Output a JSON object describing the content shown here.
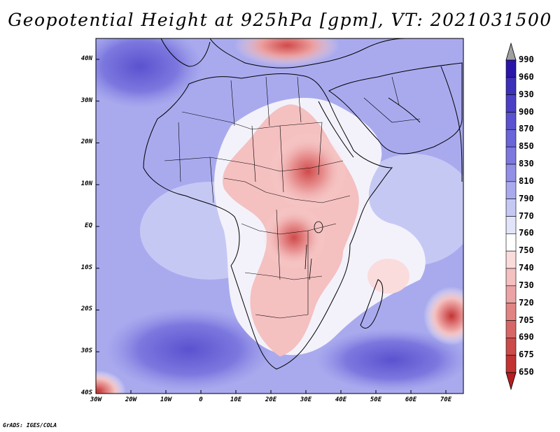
{
  "title": "Geopotential Height at 925hPa [gpm], VT: 2021031500",
  "credit": "GrADS: IGES/COLA",
  "map": {
    "lat_labels": [
      "40N",
      "30N",
      "20N",
      "10N",
      "EQ",
      "10S",
      "20S",
      "30S",
      "40S"
    ],
    "lon_labels": [
      "30W",
      "20W",
      "10W",
      "0",
      "10E",
      "20E",
      "30E",
      "40E",
      "50E",
      "60E",
      "70E"
    ],
    "extent": {
      "lon_min": -30,
      "lon_max": 75,
      "lat_min": -40,
      "lat_max": 45
    }
  },
  "colorbar": {
    "levels": [
      "990",
      "960",
      "930",
      "900",
      "870",
      "850",
      "830",
      "810",
      "790",
      "770",
      "760",
      "750",
      "740",
      "730",
      "720",
      "705",
      "690",
      "675",
      "650"
    ],
    "colors": {
      "top_arrow": "#a0a0a0",
      "bottom_arrow": "#b41e22",
      "bands": [
        "#2a15a8",
        "#3c2fb8",
        "#4b40c5",
        "#5a52cf",
        "#6a65d8",
        "#7c78df",
        "#9190e6",
        "#a9aaee",
        "#c6c8f4",
        "#e2e4fa",
        "#ffffff",
        "#fbdcdc",
        "#f5c0c0",
        "#eca3a3",
        "#e18484",
        "#d76767",
        "#cc4a4a",
        "#c23434"
      ]
    }
  }
}
